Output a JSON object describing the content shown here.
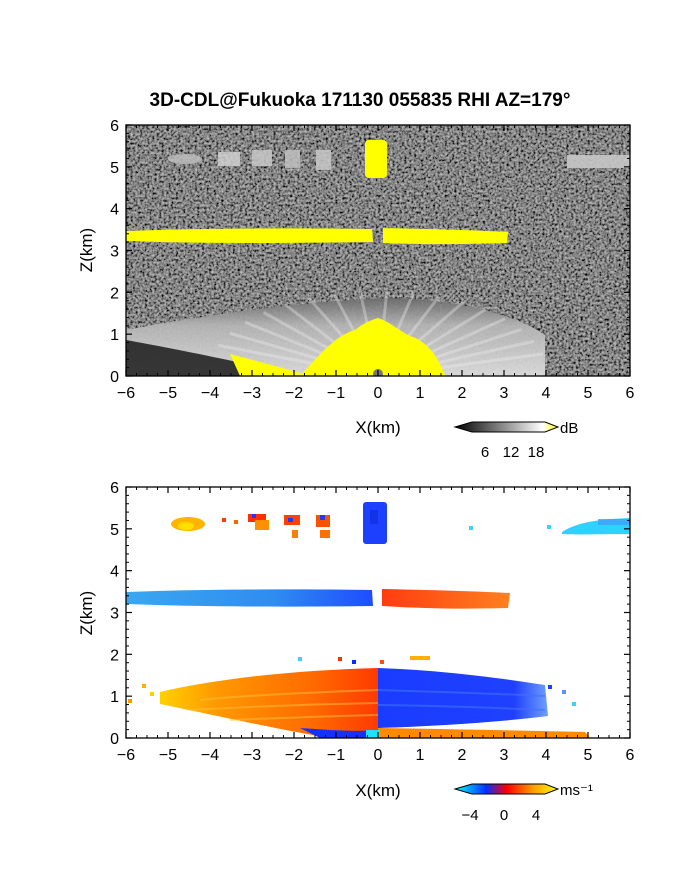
{
  "title": "3D-CDL@Fukuoka 171130 055835 RHI AZ=179°",
  "chart_data": [
    {
      "type": "heatmap",
      "variable": "intensity",
      "xlabel": "X(km)",
      "ylabel": "Z(km)",
      "xlim": [
        -6,
        6
      ],
      "ylim": [
        0,
        6
      ],
      "xticks": [
        "−6",
        "−5",
        "−4",
        "−3",
        "−2",
        "−1",
        "0",
        "1",
        "2",
        "3",
        "4",
        "5",
        "6"
      ],
      "yticks": [
        "0",
        "1",
        "2",
        "3",
        "4",
        "5",
        "6"
      ],
      "colorbar": {
        "unit": "dB",
        "ticks": [
          "6",
          "12",
          "18"
        ],
        "range": [
          0,
          21
        ],
        "colors": [
          "#000000",
          "#ffffff",
          "#ffff00"
        ]
      },
      "features": [
        {
          "name": "cloud layer",
          "x": [
            -6,
            3.05
          ],
          "z": [
            3.22,
            3.4
          ],
          "value_db": 20,
          "gap_x": [
            -0.1,
            0.15
          ]
        },
        {
          "name": "upper echoes",
          "x": [
            -5,
            -1
          ],
          "z": [
            4.9,
            5.2
          ],
          "value_db": 9
        },
        {
          "name": "zenith echo",
          "x": [
            -0.3,
            0.2
          ],
          "z": [
            4.7,
            5.6
          ],
          "value_db": 21
        },
        {
          "name": "upper right echo",
          "x": [
            4.5,
            6
          ],
          "z": [
            4.9,
            5.2
          ],
          "value_db": 9
        },
        {
          "name": "boundary layer",
          "x": [
            -6,
            5
          ],
          "z_top": [
            0.9,
            1.55
          ],
          "value_db": 12
        },
        {
          "name": "near-field saturation",
          "x": [
            -1.1,
            1.6
          ],
          "z": [
            0,
            1.1
          ],
          "value_db": 20
        }
      ]
    },
    {
      "type": "heatmap",
      "variable": "radial velocity",
      "xlabel": "X(km)",
      "ylabel": "Z(km)",
      "xlim": [
        -6,
        6
      ],
      "ylim": [
        0,
        6
      ],
      "xticks": [
        "−6",
        "−5",
        "−4",
        "−3",
        "−2",
        "−1",
        "0",
        "1",
        "2",
        "3",
        "4",
        "5",
        "6"
      ],
      "yticks": [
        "0",
        "1",
        "2",
        "3",
        "4",
        "5",
        "6"
      ],
      "colorbar": {
        "unit": "ms⁻¹",
        "ticks": [
          "−4",
          "0",
          "4"
        ],
        "range": [
          -5.5,
          5.5
        ],
        "colors": [
          "#00ffff",
          "#0030ff",
          "#ff0000",
          "#ff9900",
          "#ffff00"
        ]
      },
      "features": [
        {
          "name": "cloud layer left",
          "x": [
            -6,
            -0.1
          ],
          "z": [
            3.2,
            3.45
          ],
          "velocity": -3
        },
        {
          "name": "cloud layer right",
          "x": [
            0.1,
            3.05
          ],
          "z": [
            3.2,
            3.45
          ],
          "velocity": 2.5
        },
        {
          "name": "upper echoes",
          "x": [
            -5,
            -1
          ],
          "z": [
            4.8,
            5.3
          ],
          "velocity": 3
        },
        {
          "name": "zenith echo",
          "x": [
            -0.3,
            0.2
          ],
          "z": [
            4.6,
            5.6
          ],
          "velocity": -1.5
        },
        {
          "name": "upper right echo",
          "x": [
            4.5,
            6
          ],
          "z": [
            4.9,
            5.2
          ],
          "velocity": -4.5
        },
        {
          "name": "boundary layer left",
          "x": [
            -6,
            0
          ],
          "z": [
            0,
            1.6
          ],
          "velocity": 2.5
        },
        {
          "name": "boundary layer right",
          "x": [
            0,
            5
          ],
          "z": [
            0,
            1.4
          ],
          "velocity": -1.5
        }
      ]
    }
  ]
}
